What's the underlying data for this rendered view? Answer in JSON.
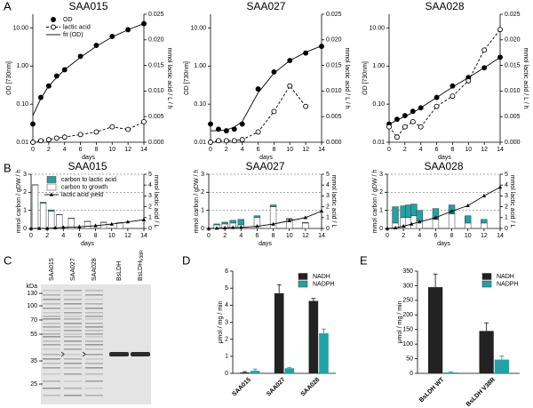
{
  "panel_labels": [
    "A",
    "B",
    "C",
    "D",
    "E"
  ],
  "gel": {
    "marker_unit": "kDa",
    "markers": [
      130,
      100,
      70,
      55,
      35,
      25
    ],
    "lanes": [
      "SAA015",
      "SAA027",
      "SAA028",
      "BsLDH",
      {
        "label": "BsLDH",
        "subscript": "V38R"
      }
    ]
  },
  "chart_data": [
    {
      "type": "line",
      "title": "SAA015",
      "x": [
        0,
        1,
        2,
        3,
        4,
        6,
        8,
        10,
        12,
        14
      ],
      "xlim": [
        0,
        14
      ],
      "xticks": [
        0,
        2,
        4,
        6,
        8,
        10,
        12,
        14
      ],
      "xlabel": "days",
      "ylabel": "OD [730nm]",
      "ylog": true,
      "ylim": [
        0.01,
        23
      ],
      "yticks": [
        0.01,
        {
          "value": 0.1,
          "label": "0.10"
        },
        {
          "value": 1,
          "label": "1.00"
        },
        {
          "value": 10,
          "label": "10.00"
        }
      ],
      "y2label": "mmol lactic acid / L / h",
      "y2lim": [
        0,
        0.025
      ],
      "y2ticks": [
        {
          "value": 0,
          "label": "0.000"
        },
        0.005,
        {
          "value": 0.01,
          "label": "0.010"
        },
        0.015,
        {
          "value": 0.02,
          "label": "0.020"
        },
        0.025
      ],
      "legend": "upper left",
      "series": [
        {
          "name": "OD",
          "color": "#000000",
          "marker": "filled",
          "line": "none",
          "values": [
            0.03,
            0.15,
            0.3,
            0.55,
            0.8,
            1.8,
            3.5,
            6,
            9,
            13
          ]
        },
        {
          "name": "lactic acid",
          "color": "#000000",
          "marker": "open",
          "line": "dashed",
          "axis": "y2",
          "values": [
            0,
            0.0003,
            0.0005,
            0.0008,
            0.001,
            0.0015,
            0.002,
            0.003,
            0.0025,
            0.004
          ]
        },
        {
          "name": "fit (OD)",
          "color": "#000000",
          "marker": "none",
          "line": "solid",
          "values": [
            0.05,
            0.14,
            0.3,
            0.5,
            0.8,
            1.7,
            3.3,
            5.8,
            9,
            13
          ]
        }
      ]
    },
    {
      "type": "line",
      "title": "SAA027",
      "x": [
        0,
        1,
        2,
        3,
        4,
        6,
        8,
        10,
        12,
        14
      ],
      "xlim": [
        0,
        14
      ],
      "xticks": [
        0,
        2,
        4,
        6,
        8,
        10,
        12,
        14
      ],
      "xlabel": "days",
      "ylabel": "OD [730nm]",
      "ylog": true,
      "ylim": [
        0.01,
        23
      ],
      "yticks": [
        0.01,
        {
          "value": 0.1,
          "label": "0.10"
        },
        {
          "value": 1,
          "label": "1.00"
        },
        {
          "value": 10,
          "label": "10.00"
        }
      ],
      "y2label": "mmol lactic acid / L / h",
      "y2lim": [
        0,
        0.025
      ],
      "y2ticks": [
        {
          "value": 0,
          "label": "0.000"
        },
        0.005,
        {
          "value": 0.01,
          "label": "0.010"
        },
        0.015,
        {
          "value": 0.02,
          "label": "0.020"
        },
        0.025
      ],
      "series": [
        {
          "color": "#000000",
          "marker": "filled",
          "line": "none",
          "values": [
            0.03,
            0.022,
            0.02,
            0.022,
            0.03,
            0.25,
            0.7,
            1.4,
            2.2,
            3.3
          ]
        },
        {
          "color": "#000000",
          "marker": "open",
          "line": "dashed",
          "axis": "y2",
          "values": [
            0,
            0.0003,
            0.0003,
            0.0003,
            0.0005,
            0.002,
            0.006,
            0.011,
            0.007,
            null
          ]
        },
        {
          "color": "#000000",
          "marker": "none",
          "line": "solid",
          "values": [
            0.02,
            0.02,
            0.021,
            0.025,
            0.035,
            0.2,
            0.65,
            1.4,
            2.3,
            3.4
          ]
        }
      ]
    },
    {
      "type": "line",
      "title": "SAA028",
      "x": [
        0,
        1,
        2,
        3,
        4,
        6,
        8,
        10,
        12,
        14
      ],
      "xlim": [
        0,
        14
      ],
      "xticks": [
        0,
        2,
        4,
        6,
        8,
        10,
        12,
        14
      ],
      "xlabel": "days",
      "ylabel": "OD [730nm]",
      "ylog": true,
      "ylim": [
        0.01,
        23
      ],
      "yticks": [
        0.01,
        {
          "value": 0.1,
          "label": "0.10"
        },
        {
          "value": 1,
          "label": "1.00"
        },
        {
          "value": 10,
          "label": "10.00"
        }
      ],
      "y2label": "mmol lactic acid / L / h",
      "y2lim": [
        0,
        0.025
      ],
      "y2ticks": [
        {
          "value": 0,
          "label": "0.000"
        },
        0.005,
        {
          "value": 0.01,
          "label": "0.010"
        },
        0.015,
        {
          "value": 0.02,
          "label": "0.020"
        },
        0.025
      ],
      "series": [
        {
          "color": "#000000",
          "marker": "filled",
          "line": "none",
          "values": [
            0.03,
            0.04,
            0.05,
            0.065,
            0.08,
            0.15,
            0.3,
            0.5,
            0.9,
            1.7
          ]
        },
        {
          "color": "#000000",
          "marker": "open",
          "line": "dashed",
          "axis": "y2",
          "values": [
            0.003,
            0.001,
            0.003,
            0.004,
            0.003,
            0.007,
            0.009,
            0.012,
            0.018,
            0.022
          ]
        },
        {
          "color": "#000000",
          "marker": "none",
          "line": "solid",
          "values": [
            0.03,
            0.038,
            0.048,
            0.06,
            0.08,
            0.15,
            0.28,
            0.5,
            0.9,
            1.7
          ]
        }
      ]
    },
    {
      "type": "bar",
      "title": "SAA015",
      "xlim": [
        0,
        14
      ],
      "xticks": [
        0,
        2,
        4,
        6,
        8,
        10,
        12,
        14
      ],
      "xlabel": "days",
      "ylabel": "mmol carbon / gDW / h",
      "ylim": [
        0,
        3
      ],
      "yticks": [
        0,
        1,
        2,
        3
      ],
      "grid": true,
      "y2label": "mmol lactic acid / L",
      "y2lim": [
        0,
        5
      ],
      "y2ticks": [
        0,
        1,
        2,
        3,
        4,
        5
      ],
      "legend": "upper left",
      "series": [
        {
          "name": "carbon to lactic acid",
          "color": "#1fa3a6",
          "x": [
            0.5,
            1.5,
            2.5,
            3.5,
            5,
            7,
            9,
            11
          ],
          "values": [
            0.02,
            0.05,
            0.08,
            0.02,
            0.02,
            0.02,
            0.02,
            0.02
          ]
        },
        {
          "name": "carbon to growth",
          "color": "#ffffff",
          "x": [
            0.5,
            1.5,
            2.5,
            3.5,
            5,
            7,
            9,
            11
          ],
          "values": [
            2.4,
            1.4,
            0.95,
            0.75,
            0.55,
            0.38,
            0.33,
            0.3
          ]
        },
        {
          "name": "lactic acid yield",
          "type": "line",
          "marker": "triangle",
          "line": "solid",
          "color": "#000000",
          "axis": "y2",
          "x": [
            0,
            1,
            2,
            3,
            4,
            6,
            8,
            10,
            12,
            14
          ],
          "values": [
            0,
            0,
            0,
            0.05,
            0.1,
            0.15,
            0.25,
            0.4,
            0.6,
            0.8
          ]
        }
      ]
    },
    {
      "type": "bar",
      "title": "SAA027",
      "xlim": [
        0,
        14
      ],
      "xticks": [
        0,
        2,
        4,
        6,
        8,
        10,
        12,
        14
      ],
      "xlabel": "days",
      "ylabel": "mmol carbon / gDW / h",
      "ylim": [
        0,
        3
      ],
      "yticks": [
        0,
        1,
        2,
        3
      ],
      "grid": true,
      "y2label": "mmol lactic acid / L",
      "y2lim": [
        0,
        5
      ],
      "y2ticks": [
        0,
        1,
        2,
        3,
        4,
        5
      ],
      "series": [
        {
          "color": "#1fa3a6",
          "x": [
            1,
            2,
            3,
            4,
            6,
            8,
            10,
            12
          ],
          "values": [
            0.05,
            0.1,
            0.15,
            0.3,
            0.1,
            0.1,
            0.05,
            0.03
          ]
        },
        {
          "color": "#ffffff",
          "x": [
            1,
            2,
            3,
            4,
            6,
            8,
            10,
            12
          ],
          "values": [
            0.2,
            0.25,
            0.3,
            0.2,
            0.6,
            1.2,
            0.5,
            0.3
          ]
        },
        {
          "type": "line",
          "marker": "triangle",
          "line": "solid",
          "color": "#000000",
          "axis": "y2",
          "x": [
            0,
            1,
            2,
            3,
            4,
            6,
            8,
            10,
            12,
            14
          ],
          "values": [
            0,
            0.02,
            0.05,
            0.08,
            0.1,
            0.2,
            0.4,
            0.7,
            1,
            1.6
          ]
        }
      ]
    },
    {
      "type": "bar",
      "title": "SAA028",
      "xlim": [
        0,
        14
      ],
      "xticks": [
        0,
        2,
        4,
        6,
        8,
        10,
        12,
        14
      ],
      "xlabel": "days",
      "ylabel": "mmol carbon / gDW / h",
      "ylim": [
        0,
        3
      ],
      "yticks": [
        0,
        1,
        2,
        3
      ],
      "grid": true,
      "y2label": "mmol lactic acid / L",
      "y2lim": [
        0,
        5
      ],
      "y2ticks": [
        0,
        1,
        2,
        3,
        4,
        5
      ],
      "series": [
        {
          "color": "#1fa3a6",
          "x": [
            1,
            2,
            2.6,
            3.3,
            4,
            6,
            8,
            10,
            12
          ],
          "values": [
            0.9,
            0.65,
            0.7,
            0.65,
            0.6,
            0.6,
            0.5,
            0.4,
            0.2
          ]
        },
        {
          "color": "#ffffff",
          "x": [
            1,
            2,
            2.6,
            3.3,
            4,
            6,
            8,
            10,
            12
          ],
          "values": [
            0.3,
            0.6,
            0.6,
            0.7,
            0.4,
            0.5,
            0.8,
            0.3,
            0.3
          ]
        },
        {
          "type": "line",
          "marker": "triangle",
          "line": "solid",
          "color": "#000000",
          "axis": "y2",
          "x": [
            0,
            1,
            2,
            3,
            4,
            6,
            8,
            10,
            12,
            14
          ],
          "values": [
            0,
            0.05,
            0.2,
            0.4,
            0.6,
            1,
            1.6,
            2.1,
            3,
            3.8
          ]
        }
      ]
    },
    {
      "type": "bar",
      "categories": [
        "SAA015",
        "SAA027",
        "SAA028"
      ],
      "ylabel": "μmol / mg / min",
      "ylim": [
        0,
        6
      ],
      "yticks": [
        0,
        1,
        2,
        3,
        4,
        5,
        6
      ],
      "legend": "upper right",
      "series": [
        {
          "name": "NADH",
          "color": "#222222",
          "values": [
            0.05,
            4.7,
            4.25
          ],
          "errors": [
            0.05,
            0.5,
            0.15
          ]
        },
        {
          "name": "NADPH",
          "color": "#1fa3a6",
          "values": [
            0.15,
            0.3,
            2.35
          ],
          "errors": [
            0.1,
            0.05,
            0.25
          ]
        }
      ]
    },
    {
      "type": "bar",
      "categories": [
        "BsLDH WT",
        "BsLDH V38R"
      ],
      "ylabel": "μmol / mg / min",
      "ylim": [
        0,
        350
      ],
      "yticks": [
        0,
        50,
        100,
        150,
        200,
        250,
        300,
        350
      ],
      "legend": "upper right",
      "series": [
        {
          "name": "NADH",
          "color": "#222222",
          "values": [
            295,
            145
          ],
          "errors": [
            45,
            28
          ]
        },
        {
          "name": "NADPH",
          "color": "#1fa3a6",
          "values": [
            3,
            47
          ],
          "errors": [
            2,
            12
          ]
        }
      ]
    }
  ]
}
